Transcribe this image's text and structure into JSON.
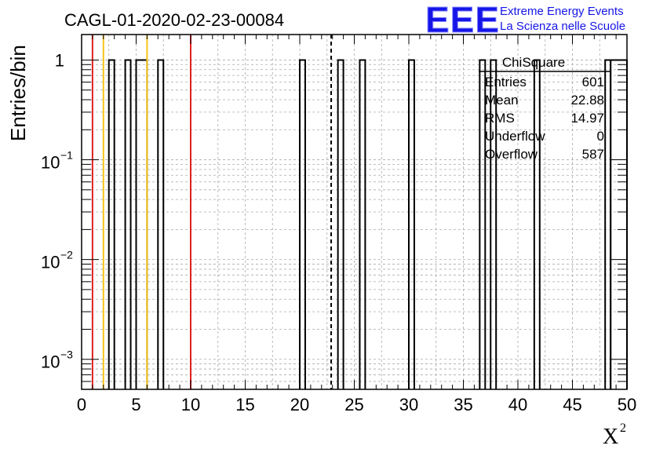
{
  "chart_data": {
    "type": "bar",
    "style": "step-histogram",
    "title": "CAGL-01-2020-02-23-00084",
    "xlabel": "X",
    "xlabel_superscript": "2",
    "ylabel": "Entries/bin",
    "xlim": [
      0,
      50
    ],
    "ylim_log": [
      0.0005,
      1.8
    ],
    "y_scale": "log",
    "grid": true,
    "bin_width": 0.5,
    "x_ticks": [
      0,
      5,
      10,
      15,
      20,
      25,
      30,
      35,
      40,
      45,
      50
    ],
    "x_tick_labels": [
      "0",
      "5",
      "10",
      "15",
      "20",
      "25",
      "30",
      "35",
      "40",
      "45",
      "50"
    ],
    "y_ticks": [
      {
        "value": 1,
        "base": "1",
        "exp": ""
      },
      {
        "value": 0.1,
        "base": "10",
        "exp": "−1"
      },
      {
        "value": 0.01,
        "base": "10",
        "exp": "−2"
      },
      {
        "value": 0.001,
        "base": "10",
        "exp": "−3"
      }
    ],
    "filled_bins": [
      {
        "x_low": 2.5,
        "x_high": 3.0,
        "value": 1
      },
      {
        "x_low": 4.0,
        "x_high": 4.5,
        "value": 1
      },
      {
        "x_low": 5.0,
        "x_high": 6.0,
        "value": 1
      },
      {
        "x_low": 7.0,
        "x_high": 7.5,
        "value": 1
      },
      {
        "x_low": 20.0,
        "x_high": 20.5,
        "value": 1
      },
      {
        "x_low": 23.5,
        "x_high": 24.0,
        "value": 1
      },
      {
        "x_low": 25.5,
        "x_high": 26.0,
        "value": 1
      },
      {
        "x_low": 30.0,
        "x_high": 30.5,
        "value": 1
      },
      {
        "x_low": 36.5,
        "x_high": 37.0,
        "value": 1
      },
      {
        "x_low": 37.5,
        "x_high": 38.0,
        "value": 1
      },
      {
        "x_low": 41.5,
        "x_high": 42.0,
        "value": 1
      },
      {
        "x_low": 48.0,
        "x_high": 48.5,
        "value": 1
      },
      {
        "x_low": 48.5,
        "x_high": 50.0,
        "value": 1
      }
    ],
    "vertical_lines": [
      {
        "x": 1,
        "color": "#e02020",
        "style": "solid"
      },
      {
        "x": 2,
        "color": "#f5c518",
        "style": "solid"
      },
      {
        "x": 6,
        "color": "#f5c518",
        "style": "solid"
      },
      {
        "x": 10,
        "color": "#e02020",
        "style": "solid"
      },
      {
        "x": 22.88,
        "color": "#000000",
        "style": "dashed"
      }
    ],
    "stats_box": {
      "name": "ChiSquare",
      "rows": [
        {
          "label": "Entries",
          "value": "601"
        },
        {
          "label": "Mean",
          "value": "22.88"
        },
        {
          "label": "RMS",
          "value": "14.97"
        },
        {
          "label": "Underflow",
          "value": "0"
        },
        {
          "label": "Overflow",
          "value": "587"
        }
      ]
    },
    "logo": {
      "mark": "EEE",
      "line1": "Extreme Energy Events",
      "line2": "La Scienza nelle Scuole",
      "color": "#1515e8"
    }
  }
}
